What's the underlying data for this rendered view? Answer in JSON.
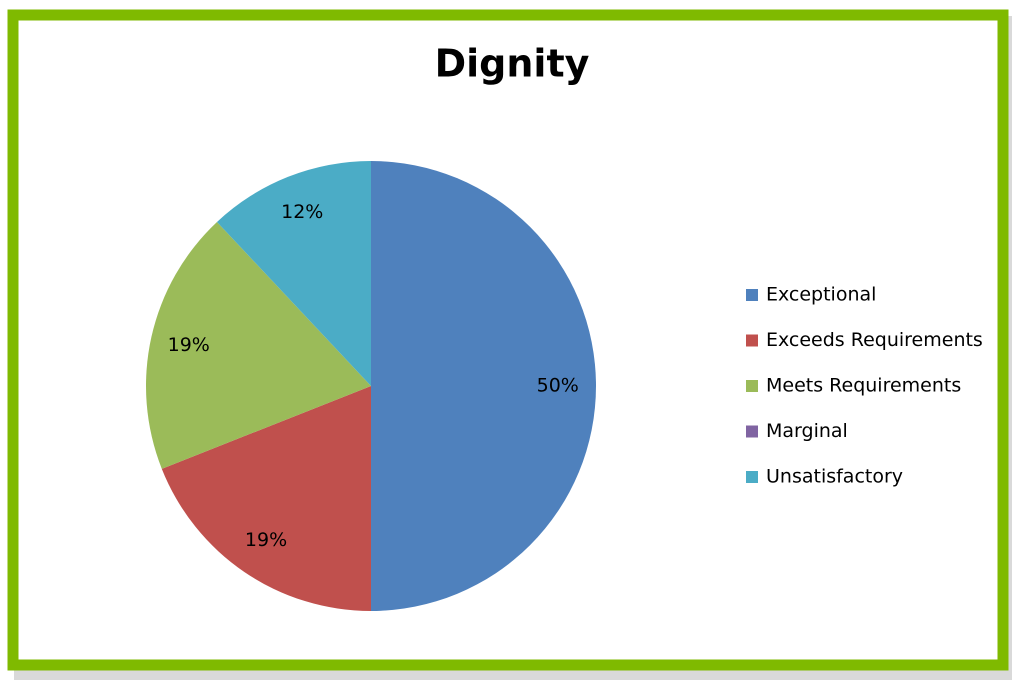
{
  "chart_data": {
    "type": "pie",
    "title": "Dignity",
    "categories": [
      "Exceptional",
      "Exceeds Requirements",
      "Meets Requirements",
      "Marginal",
      "Unsatisfactory"
    ],
    "values": [
      50,
      19,
      19,
      0,
      12
    ],
    "value_labels": [
      "50%",
      "19%",
      "19%",
      null,
      "12%"
    ],
    "colors": [
      "#4f81bd",
      "#c0504d",
      "#9bbb59",
      "#8064a2",
      "#4bacc6"
    ],
    "legend": "right"
  }
}
